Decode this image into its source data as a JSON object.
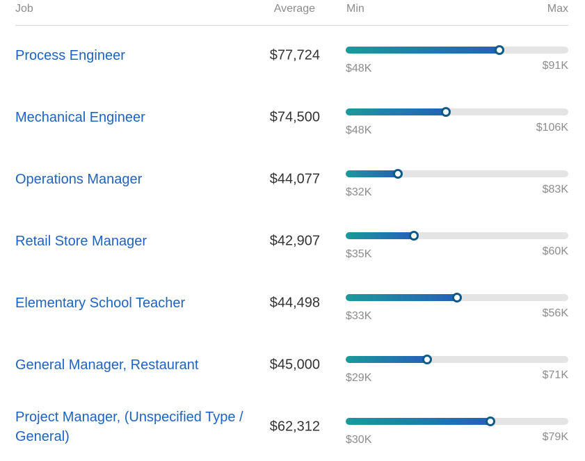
{
  "header": {
    "job": "Job",
    "average": "Average",
    "min": "Min",
    "max": "Max"
  },
  "colors": {
    "link": "#1f63c0",
    "bar_start": "#1a9a9a",
    "bar_end": "#2560b8",
    "track": "#e4e4e4",
    "muted": "#8c8c8c"
  },
  "rows": [
    {
      "job": "Process Engineer",
      "average": "$77,724",
      "min": "$48K",
      "max": "$91K",
      "fill_fraction": 0.69
    },
    {
      "job": "Mechanical Engineer",
      "average": "$74,500",
      "min": "$48K",
      "max": "$106K",
      "fill_fraction": 0.45
    },
    {
      "job": "Operations Manager",
      "average": "$44,077",
      "min": "$32K",
      "max": "$83K",
      "fill_fraction": 0.235
    },
    {
      "job": "Retail Store Manager",
      "average": "$42,907",
      "min": "$35K",
      "max": "$60K",
      "fill_fraction": 0.305
    },
    {
      "job": "Elementary School Teacher",
      "average": "$44,498",
      "min": "$33K",
      "max": "$56K",
      "fill_fraction": 0.5
    },
    {
      "job": "General Manager, Restaurant",
      "average": "$45,000",
      "min": "$29K",
      "max": "$71K",
      "fill_fraction": 0.365
    },
    {
      "job": "Project Manager, (Unspecified Type / General)",
      "average": "$62,312",
      "min": "$30K",
      "max": "$79K",
      "fill_fraction": 0.65
    }
  ]
}
